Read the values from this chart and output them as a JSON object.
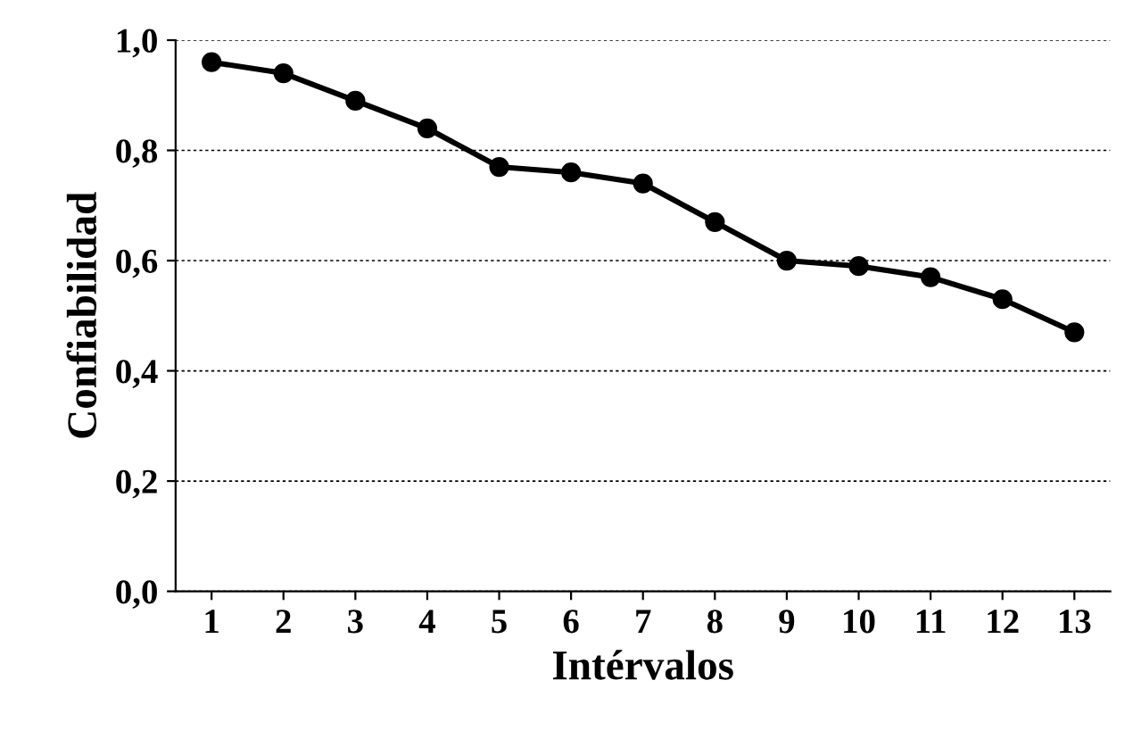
{
  "chart_data": {
    "type": "line",
    "xlabel": "Intérvalos",
    "ylabel": "Confiabilidad",
    "categories": [
      "1",
      "2",
      "3",
      "4",
      "5",
      "6",
      "7",
      "8",
      "9",
      "10",
      "11",
      "12",
      "13"
    ],
    "series": [
      {
        "color": "#000000",
        "values": [
          0.96,
          0.94,
          0.89,
          0.84,
          0.77,
          0.76,
          0.74,
          0.67,
          0.6,
          0.59,
          0.57,
          0.53,
          0.47
        ]
      }
    ],
    "ylim": [
      0,
      1
    ],
    "yticks": [
      {
        "value": 0,
        "label": "0,0"
      },
      {
        "value": 0.2,
        "label": "0,2"
      },
      {
        "value": 0.4,
        "label": "0,4"
      },
      {
        "value": 0.6,
        "label": "0,6"
      },
      {
        "value": 0.8,
        "label": "0,8"
      },
      {
        "value": 1.0,
        "label": "1,0"
      }
    ],
    "grid": "y",
    "marker": "circle",
    "line_style": "solid"
  }
}
